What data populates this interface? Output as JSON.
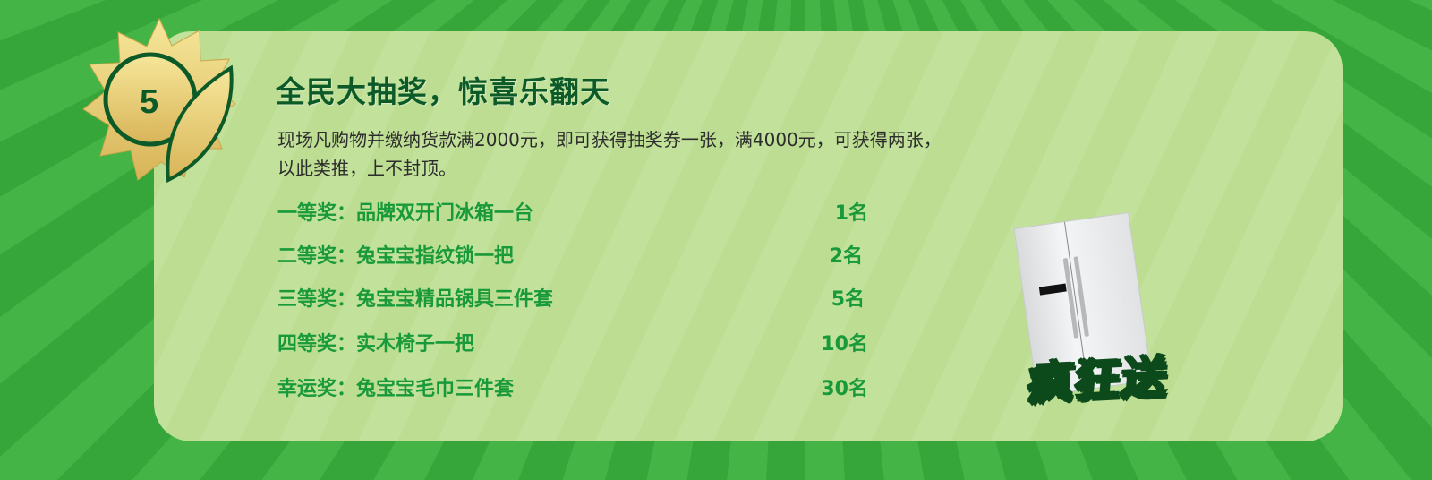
{
  "badge": {
    "number": "5"
  },
  "title": "全民大抽奖，惊喜乐翻天",
  "description": [
    "现场凡购物并缴纳货款满2000元，即可获得抽奖券一张，满4000元，可获得两张，",
    "以此类推，上不封顶。"
  ],
  "prizes": [
    {
      "label": "一等奖：品牌双开门冰箱一台",
      "count": "1名"
    },
    {
      "label": "二等奖：兔宝宝指纹锁一把",
      "count": "2名"
    },
    {
      "label": "三等奖：兔宝宝精品锅具三件套",
      "count": "5名"
    },
    {
      "label": "四等奖：实木椅子一把",
      "count": "10名"
    },
    {
      "label": "幸运奖：兔宝宝毛巾三件套",
      "count": "30名"
    }
  ],
  "promo_stamp": "疯狂送",
  "colors": {
    "background": "#3aaa3c",
    "panel": "#c0e097",
    "title": "#0c5a28",
    "prize": "#199a3a",
    "badge_gold": "#e8cf72"
  }
}
